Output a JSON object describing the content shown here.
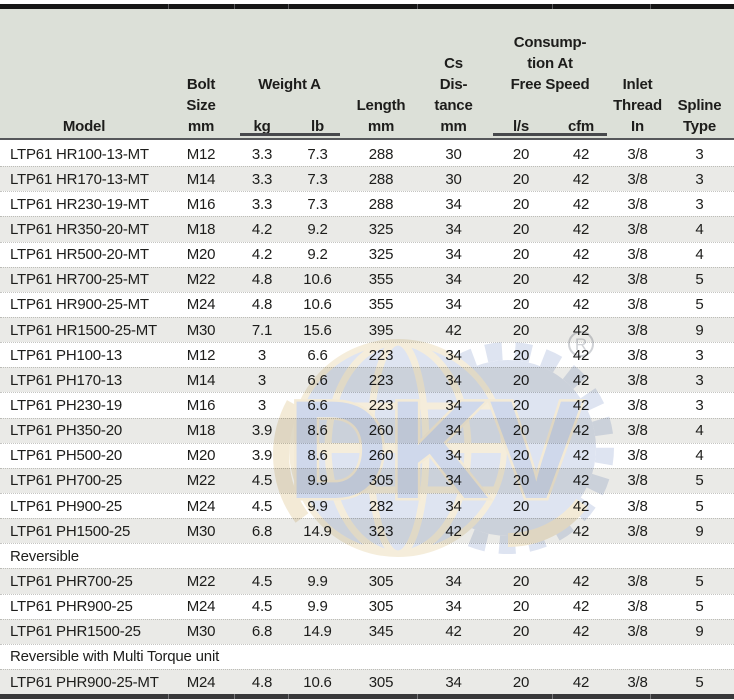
{
  "header": {
    "model": "Model",
    "bolt_size": [
      "Bolt",
      "Size",
      "mm"
    ],
    "weight_group": "Weight A",
    "kg": "kg",
    "lb": "lb",
    "length": [
      "Length",
      "mm"
    ],
    "cs_distance": [
      "Cs",
      "Dis-",
      "tance",
      "mm"
    ],
    "consumption_group": [
      "Consump-",
      "tion At",
      "Free Speed"
    ],
    "ls": "l/s",
    "cfm": "cfm",
    "inlet_thread": [
      "Inlet",
      "Thread",
      "In"
    ],
    "spline_type": [
      "Spline",
      "Type"
    ]
  },
  "rows": [
    {
      "model": "LTP61 HR100-13-MT",
      "bolt": "M12",
      "kg": "3.3",
      "lb": "7.3",
      "length": "288",
      "cs": "30",
      "ls": "20",
      "cfm": "42",
      "inlet": "3/8",
      "spline": "3"
    },
    {
      "model": "LTP61 HR170-13-MT",
      "bolt": "M14",
      "kg": "3.3",
      "lb": "7.3",
      "length": "288",
      "cs": "30",
      "ls": "20",
      "cfm": "42",
      "inlet": "3/8",
      "spline": "3"
    },
    {
      "model": "LTP61 HR230-19-MT",
      "bolt": "M16",
      "kg": "3.3",
      "lb": "7.3",
      "length": "288",
      "cs": "34",
      "ls": "20",
      "cfm": "42",
      "inlet": "3/8",
      "spline": "3"
    },
    {
      "model": "LTP61 HR350-20-MT",
      "bolt": "M18",
      "kg": "4.2",
      "lb": "9.2",
      "length": "325",
      "cs": "34",
      "ls": "20",
      "cfm": "42",
      "inlet": "3/8",
      "spline": "4"
    },
    {
      "model": "LTP61 HR500-20-MT",
      "bolt": "M20",
      "kg": "4.2",
      "lb": "9.2",
      "length": "325",
      "cs": "34",
      "ls": "20",
      "cfm": "42",
      "inlet": "3/8",
      "spline": "4"
    },
    {
      "model": "LTP61 HR700-25-MT",
      "bolt": "M22",
      "kg": "4.8",
      "lb": "10.6",
      "length": "355",
      "cs": "34",
      "ls": "20",
      "cfm": "42",
      "inlet": "3/8",
      "spline": "5"
    },
    {
      "model": "LTP61 HR900-25-MT",
      "bolt": "M24",
      "kg": "4.8",
      "lb": "10.6",
      "length": "355",
      "cs": "34",
      "ls": "20",
      "cfm": "42",
      "inlet": "3/8",
      "spline": "5"
    },
    {
      "model": "LTP61 HR1500-25-MT",
      "bolt": "M30",
      "kg": "7.1",
      "lb": "15.6",
      "length": "395",
      "cs": "42",
      "ls": "20",
      "cfm": "42",
      "inlet": "3/8",
      "spline": "9"
    },
    {
      "model": "LTP61 PH100-13",
      "bolt": "M12",
      "kg": "3",
      "lb": "6.6",
      "length": "223",
      "cs": "34",
      "ls": "20",
      "cfm": "42",
      "inlet": "3/8",
      "spline": "3"
    },
    {
      "model": "LTP61 PH170-13",
      "bolt": "M14",
      "kg": "3",
      "lb": "6.6",
      "length": "223",
      "cs": "34",
      "ls": "20",
      "cfm": "42",
      "inlet": "3/8",
      "spline": "3"
    },
    {
      "model": "LTP61 PH230-19",
      "bolt": "M16",
      "kg": "3",
      "lb": "6.6",
      "length": "223",
      "cs": "34",
      "ls": "20",
      "cfm": "42",
      "inlet": "3/8",
      "spline": "3"
    },
    {
      "model": "LTP61 PH350-20",
      "bolt": "M18",
      "kg": "3.9",
      "lb": "8.6",
      "length": "260",
      "cs": "34",
      "ls": "20",
      "cfm": "42",
      "inlet": "3/8",
      "spline": "4"
    },
    {
      "model": "LTP61 PH500-20",
      "bolt": "M20",
      "kg": "3.9",
      "lb": "8.6",
      "length": "260",
      "cs": "34",
      "ls": "20",
      "cfm": "42",
      "inlet": "3/8",
      "spline": "4"
    },
    {
      "model": "LTP61 PH700-25",
      "bolt": "M22",
      "kg": "4.5",
      "lb": "9.9",
      "length": "305",
      "cs": "34",
      "ls": "20",
      "cfm": "42",
      "inlet": "3/8",
      "spline": "5"
    },
    {
      "model": "LTP61 PH900-25",
      "bolt": "M24",
      "kg": "4.5",
      "lb": "9.9",
      "length": "282",
      "cs": "34",
      "ls": "20",
      "cfm": "42",
      "inlet": "3/8",
      "spline": "5"
    },
    {
      "model": "LTP61 PH1500-25",
      "bolt": "M30",
      "kg": "6.8",
      "lb": "14.9",
      "length": "323",
      "cs": "42",
      "ls": "20",
      "cfm": "42",
      "inlet": "3/8",
      "spline": "9"
    },
    {
      "section": "Reversible"
    },
    {
      "model": "LTP61 PHR700-25",
      "bolt": "M22",
      "kg": "4.5",
      "lb": "9.9",
      "length": "305",
      "cs": "34",
      "ls": "20",
      "cfm": "42",
      "inlet": "3/8",
      "spline": "5"
    },
    {
      "model": "LTP61 PHR900-25",
      "bolt": "M24",
      "kg": "4.5",
      "lb": "9.9",
      "length": "305",
      "cs": "34",
      "ls": "20",
      "cfm": "42",
      "inlet": "3/8",
      "spline": "5"
    },
    {
      "model": "LTP61 PHR1500-25",
      "bolt": "M30",
      "kg": "6.8",
      "lb": "14.9",
      "length": "345",
      "cs": "42",
      "ls": "20",
      "cfm": "42",
      "inlet": "3/8",
      "spline": "9"
    },
    {
      "section": "Reversible with Multi Torque unit"
    },
    {
      "model": "LTP61 PHR900-25-MT",
      "bolt": "M24",
      "kg": "4.8",
      "lb": "10.6",
      "length": "305",
      "cs": "34",
      "ls": "20",
      "cfm": "42",
      "inlet": "3/8",
      "spline": "5"
    }
  ],
  "watermark": {
    "letters": "DKV",
    "registered": "R"
  },
  "colors": {
    "header_bg": "#dce0d8",
    "stripe": "#eaeae7",
    "text": "#1d1d1b",
    "border_bar": "#161616",
    "watermark_blue": "#c3cde6",
    "watermark_letter_blue": "#a7b8da",
    "watermark_tan": "#ead9b4"
  }
}
